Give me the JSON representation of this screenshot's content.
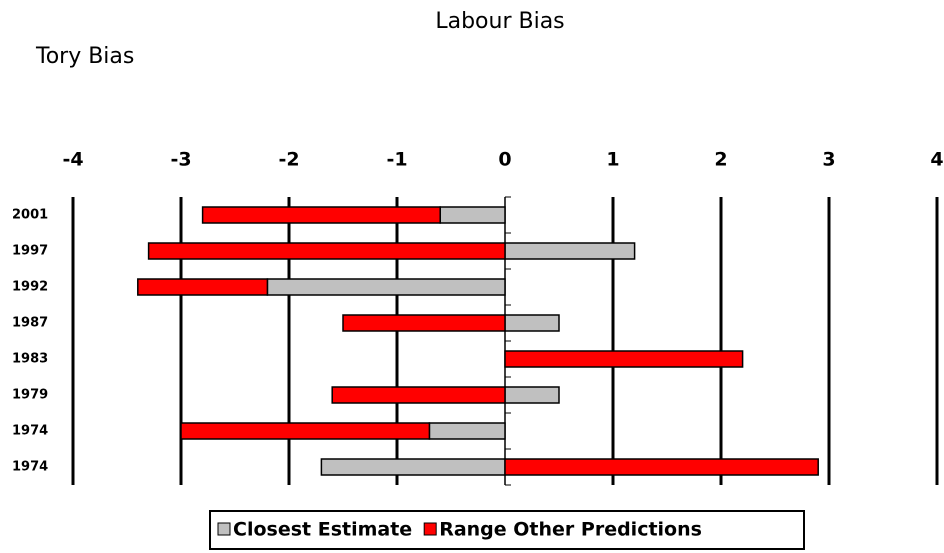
{
  "chart_data": {
    "type": "bar",
    "orientation": "horizontal",
    "stacked": true,
    "annotations": [
      "Labour Bias",
      "Tory Bias"
    ],
    "categories": [
      "2001",
      "1997",
      "1992",
      "1987",
      "1983",
      "1979",
      "1974",
      "1974"
    ],
    "series": [
      {
        "name": "Closest Estimate",
        "color": "#c0c0c0",
        "values": [
          -0.6,
          1.2,
          -2.2,
          0.5,
          0,
          0.5,
          -0.7,
          -1.7
        ]
      },
      {
        "name": "Range Other Predictions",
        "color": "#ff0000",
        "values": [
          -2.2,
          -3.3,
          -1.2,
          -1.5,
          2.2,
          -1.6,
          -2.3,
          2.9
        ]
      }
    ],
    "xlim": [
      -4,
      4
    ],
    "xticks": [
      {
        "value": -4,
        "label": "-4"
      },
      {
        "value": -3,
        "label": "-3"
      },
      {
        "value": -2,
        "label": "-2"
      },
      {
        "value": -1,
        "label": "-1"
      },
      0,
      1,
      2,
      3,
      4
    ],
    "grid": true,
    "legend": "bottom"
  }
}
